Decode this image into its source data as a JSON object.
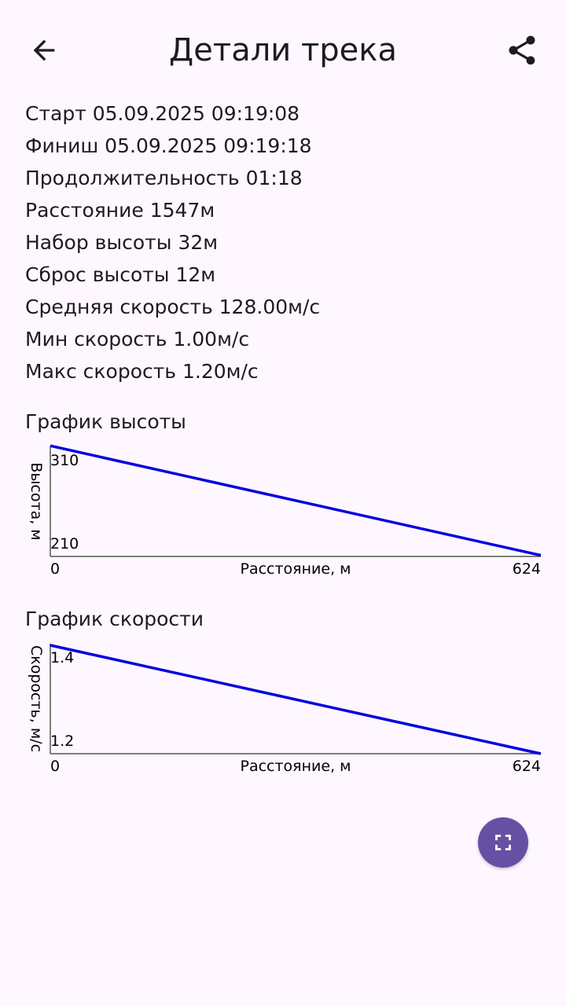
{
  "header": {
    "title": "Детали трека",
    "back_icon": "arrow-back-icon",
    "share_icon": "share-icon"
  },
  "stats": [
    "Старт 05.09.2025 09:19:08",
    "Финиш 05.09.2025 09:19:18",
    "Продолжительность 01:18",
    "Расстояние 1547м",
    "Набор высоты 32м",
    "Сброс высоты 12м",
    "Средняя скорость 128.00м/с",
    "Мин скорость 1.00м/с",
    "Макс скорость 1.20м/с"
  ],
  "charts": {
    "altitude": {
      "title": "График высоты",
      "ylabel": "Высота, м",
      "xlabel": "Расстояние, м",
      "y_max_label": "310",
      "y_min_label": "210",
      "x_min_label": "0",
      "x_max_label": "624"
    },
    "speed": {
      "title": "График скорости",
      "ylabel": "Скорость, м/с",
      "xlabel": "Расстояние, м",
      "y_max_label": "1.4",
      "y_min_label": "1.2",
      "x_min_label": "0",
      "x_max_label": "624"
    }
  },
  "chart_data": [
    {
      "type": "line",
      "title": "График высоты",
      "xlabel": "Расстояние, м",
      "ylabel": "Высота, м",
      "xlim": [
        0,
        624
      ],
      "ylim": [
        210,
        310
      ],
      "x": [
        0,
        624
      ],
      "values": [
        312,
        211
      ],
      "color": "#0000E0"
    },
    {
      "type": "line",
      "title": "График скорости",
      "xlabel": "Расстояние, м",
      "ylabel": "Скорость, м/с",
      "xlim": [
        0,
        624
      ],
      "ylim": [
        1.2,
        1.4
      ],
      "x": [
        0,
        624
      ],
      "values": [
        1.4,
        1.2
      ],
      "color": "#0000E0"
    }
  ],
  "fab": {
    "icon": "fullscreen-icon",
    "color": "#6750A4"
  },
  "colors": {
    "background": "#FEF7FF",
    "line": "#0000E0",
    "text": "#1D1B20"
  }
}
